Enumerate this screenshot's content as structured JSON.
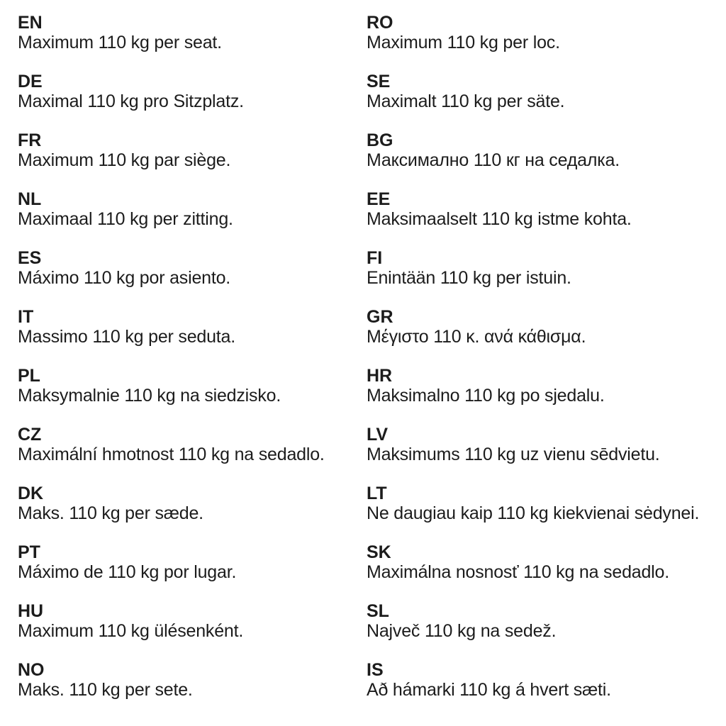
{
  "page": {
    "background": "#ffffff",
    "text_color": "#1c1c1c"
  },
  "columns": [
    {
      "entries": [
        {
          "code": "EN",
          "text": "Maximum 110 kg per seat."
        },
        {
          "code": "DE",
          "text": "Maximal 110 kg pro Sitzplatz."
        },
        {
          "code": "FR",
          "text": "Maximum 110 kg par siège."
        },
        {
          "code": "NL",
          "text": "Maximaal 110 kg per zitting."
        },
        {
          "code": "ES",
          "text": "Máximo 110 kg por asiento."
        },
        {
          "code": "IT",
          "text": "Massimo 110 kg per seduta."
        },
        {
          "code": "PL",
          "text": "Maksymalnie 110 kg na siedzisko."
        },
        {
          "code": "CZ",
          "text": "Maximální hmotnost 110 kg na sedadlo."
        },
        {
          "code": "DK",
          "text": "Maks. 110 kg per sæde."
        },
        {
          "code": "PT",
          "text": "Máximo de 110 kg por lugar."
        },
        {
          "code": "HU",
          "text": "Maximum 110 kg ülésenként."
        },
        {
          "code": "NO",
          "text": "Maks. 110 kg per sete."
        }
      ]
    },
    {
      "entries": [
        {
          "code": "RO",
          "text": "Maximum 110 kg per loc."
        },
        {
          "code": "SE",
          "text": "Maximalt 110 kg per säte."
        },
        {
          "code": "BG",
          "text": "Максимално 110 кг на седалка."
        },
        {
          "code": "EE",
          "text": "Maksimaalselt 110 kg istme kohta."
        },
        {
          "code": "FI",
          "text": "Enintään 110 kg per istuin."
        },
        {
          "code": "GR",
          "text": "Μέγιστο 110 κ. ανά κάθισμα."
        },
        {
          "code": "HR",
          "text": "Maksimalno 110 kg po sjedalu."
        },
        {
          "code": "LV",
          "text": "Maksimums 110 kg uz vienu sēdvietu."
        },
        {
          "code": "LT",
          "text": "Ne daugiau kaip 110 kg kiekvienai sėdynei."
        },
        {
          "code": "SK",
          "text": "Maximálna nosnosť 110 kg na sedadlo."
        },
        {
          "code": "SL",
          "text": "Največ 110 kg na sedež."
        },
        {
          "code": "IS",
          "text": "Að hámarki 110 kg á hvert sæti."
        }
      ]
    }
  ]
}
